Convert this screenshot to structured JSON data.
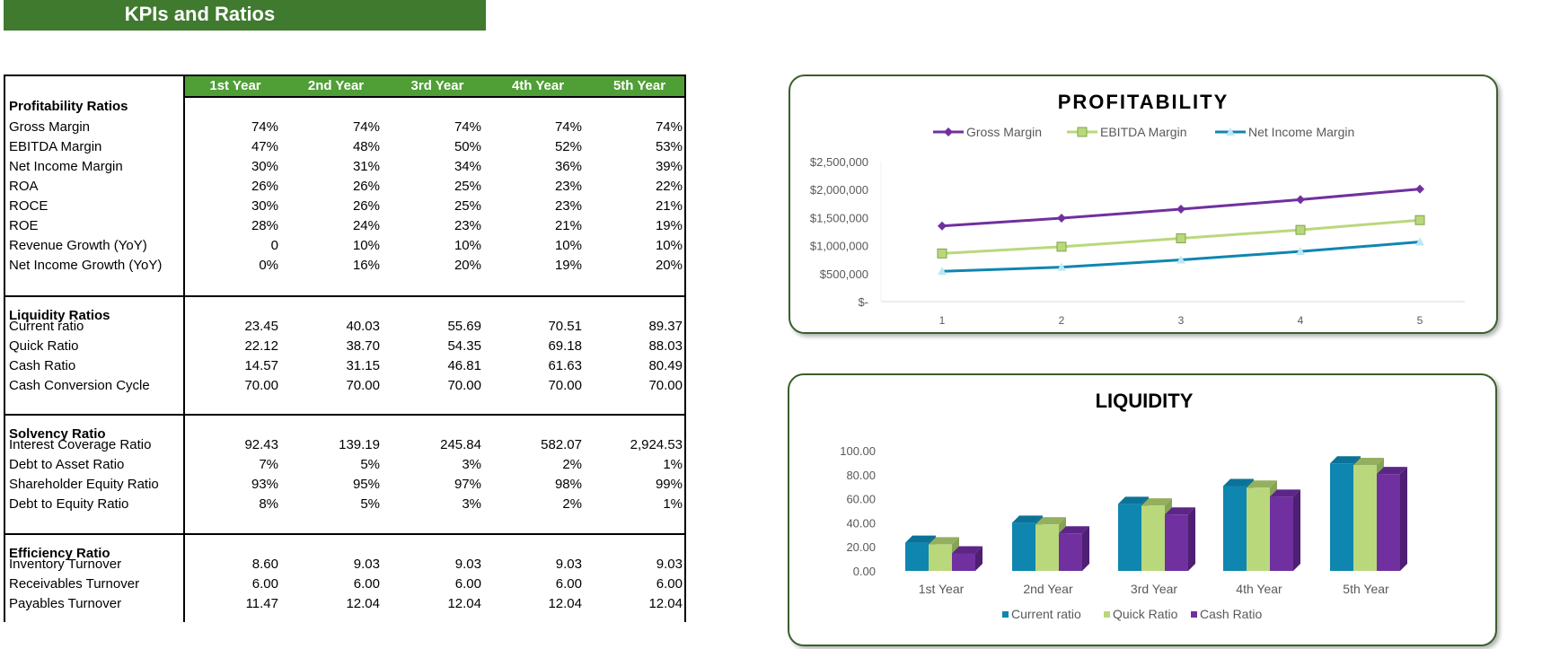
{
  "title": "KPIs and Ratios",
  "table": {
    "columns": [
      "1st Year",
      "2nd Year",
      "3rd Year",
      "4th Year",
      "5th Year"
    ],
    "sections": [
      {
        "heading": "Profitability Ratios",
        "rows": [
          {
            "label": "Gross Margin",
            "values": [
              "74%",
              "74%",
              "74%",
              "74%",
              "74%"
            ]
          },
          {
            "label": "EBITDA Margin",
            "values": [
              "47%",
              "48%",
              "50%",
              "52%",
              "53%"
            ]
          },
          {
            "label": "Net Income Margin",
            "values": [
              "30%",
              "31%",
              "34%",
              "36%",
              "39%"
            ]
          },
          {
            "label": "ROA",
            "values": [
              "26%",
              "26%",
              "25%",
              "23%",
              "22%"
            ]
          },
          {
            "label": "ROCE",
            "values": [
              "30%",
              "26%",
              "25%",
              "23%",
              "21%"
            ]
          },
          {
            "label": "ROE",
            "values": [
              "28%",
              "24%",
              "23%",
              "21%",
              "19%"
            ]
          },
          {
            "label": "Revenue Growth (YoY)",
            "values": [
              "0",
              "10%",
              "10%",
              "10%",
              "10%"
            ]
          },
          {
            "label": "Net Income Growth (YoY)",
            "values": [
              "0%",
              "16%",
              "20%",
              "19%",
              "20%"
            ]
          }
        ]
      },
      {
        "heading": "Liquidity Ratios",
        "rows": [
          {
            "label": "Current ratio",
            "values": [
              "23.45",
              "40.03",
              "55.69",
              "70.51",
              "89.37"
            ]
          },
          {
            "label": "Quick Ratio",
            "values": [
              "22.12",
              "38.70",
              "54.35",
              "69.18",
              "88.03"
            ]
          },
          {
            "label": "Cash Ratio",
            "values": [
              "14.57",
              "31.15",
              "46.81",
              "61.63",
              "80.49"
            ]
          },
          {
            "label": "Cash Conversion Cycle",
            "values": [
              "70.00",
              "70.00",
              "70.00",
              "70.00",
              "70.00"
            ]
          }
        ]
      },
      {
        "heading": "Solvency Ratio",
        "rows": [
          {
            "label": "Interest Coverage Ratio",
            "values": [
              "92.43",
              "139.19",
              "245.84",
              "582.07",
              "2,924.53"
            ]
          },
          {
            "label": "Debt to Asset Ratio",
            "values": [
              "7%",
              "5%",
              "3%",
              "2%",
              "1%"
            ]
          },
          {
            "label": "Shareholder Equity Ratio",
            "values": [
              "93%",
              "95%",
              "97%",
              "98%",
              "99%"
            ]
          },
          {
            "label": "Debt to Equity Ratio",
            "values": [
              "8%",
              "5%",
              "3%",
              "2%",
              "1%"
            ]
          }
        ]
      },
      {
        "heading": "Efficiency Ratio",
        "rows": [
          {
            "label": "Inventory Turnover",
            "values": [
              "8.60",
              "9.03",
              "9.03",
              "9.03",
              "9.03"
            ]
          },
          {
            "label": "Receivables Turnover",
            "values": [
              "6.00",
              "6.00",
              "6.00",
              "6.00",
              "6.00"
            ]
          },
          {
            "label": "Payables Turnover",
            "values": [
              "11.47",
              "12.04",
              "12.04",
              "12.04",
              "12.04"
            ]
          }
        ]
      }
    ]
  },
  "colors": {
    "title_bg": "#3f7a2e",
    "header_bg": "#4f9e36",
    "chart_border": "#3b5e2b",
    "purple": "#7030a0",
    "light_green": "#b9d87c",
    "teal": "#0f86b0"
  },
  "chart_data": [
    {
      "type": "line",
      "title": "PROFITABILITY",
      "x": [
        1,
        2,
        3,
        4,
        5
      ],
      "x_tick_labels": [
        "1",
        "2",
        "3",
        "4",
        "5"
      ],
      "ylim": [
        0,
        2500000
      ],
      "y_tick_labels": [
        "$-",
        "$500,000",
        "$1,000,000",
        "$1,500,000",
        "$2,000,000",
        "$2,500,000"
      ],
      "y_ticks": [
        0,
        500000,
        1000000,
        1500000,
        2000000,
        2500000
      ],
      "legend": "top",
      "grid": false,
      "series": [
        {
          "name": "Gross Margin",
          "values": [
            1350000,
            1490000,
            1650000,
            1820000,
            2010000
          ],
          "color": "#7030a0",
          "marker": "diamond"
        },
        {
          "name": "EBITDA Margin",
          "values": [
            860000,
            980000,
            1130000,
            1280000,
            1455000
          ],
          "color": "#b9d87c",
          "marker": "square"
        },
        {
          "name": "Net Income Margin",
          "values": [
            540000,
            615000,
            745000,
            895000,
            1065000
          ],
          "color": "#0f86b0",
          "marker": "triangle"
        }
      ]
    },
    {
      "type": "bar",
      "title": "LIQUIDITY",
      "categories": [
        "1st Year",
        "2nd Year",
        "3rd Year",
        "4th Year",
        "5th Year"
      ],
      "ylim": [
        0,
        100
      ],
      "y_ticks": [
        0,
        20,
        40,
        60,
        80,
        100
      ],
      "y_tick_labels": [
        "0.00",
        "20.00",
        "40.00",
        "60.00",
        "80.00",
        "100.00"
      ],
      "legend": "bottom",
      "grid": false,
      "series": [
        {
          "name": "Current ratio",
          "values": [
            23.45,
            40.03,
            55.69,
            70.51,
            89.37
          ],
          "color": "#0f86b0"
        },
        {
          "name": "Quick Ratio",
          "values": [
            22.12,
            38.7,
            54.35,
            69.18,
            88.03
          ],
          "color": "#b9d87c"
        },
        {
          "name": "Cash Ratio",
          "values": [
            14.57,
            31.15,
            46.81,
            61.63,
            80.49
          ],
          "color": "#7030a0"
        }
      ]
    }
  ]
}
